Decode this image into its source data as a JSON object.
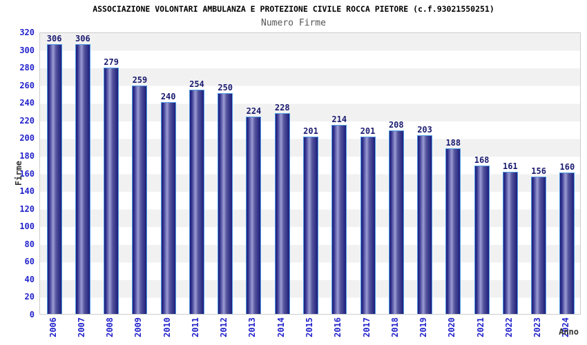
{
  "header": {
    "title": "ASSOCIAZIONE VOLONTARI AMBULANZA E PROTEZIONE CIVILE ROCCA PIETORE (c.f.93021550251)",
    "subtitle": "Numero Firme"
  },
  "chart_data": {
    "type": "bar",
    "title": "Numero Firme",
    "categories": [
      "2006",
      "2007",
      "2008",
      "2009",
      "2010",
      "2011",
      "2012",
      "2013",
      "2014",
      "2015",
      "2016",
      "2017",
      "2018",
      "2019",
      "2020",
      "2021",
      "2022",
      "2023",
      "2024"
    ],
    "values": [
      306,
      306,
      279,
      259,
      240,
      254,
      250,
      224,
      228,
      201,
      214,
      201,
      208,
      203,
      188,
      168,
      161,
      156,
      160
    ],
    "xlabel": "Anno",
    "ylabel": "Firme",
    "ylim": [
      0,
      320
    ],
    "ytick_step": 20,
    "grid": "alternating horizontal gray/white bands every 20 units",
    "legend": "none",
    "colors": {
      "bar_dark": "#1e1e7a",
      "bar_light": "#9c9cd4",
      "bar_border": "#4f9de6",
      "tick_label_blue": "#2222cc",
      "value_label_navy": "#1a1a70",
      "band_gray": "#f1f1f1",
      "band_white": "#ffffff",
      "plot_border": "#cccccc",
      "subtitle_gray": "#555555",
      "axis_title": "#333333",
      "title_black": "#000000"
    }
  }
}
